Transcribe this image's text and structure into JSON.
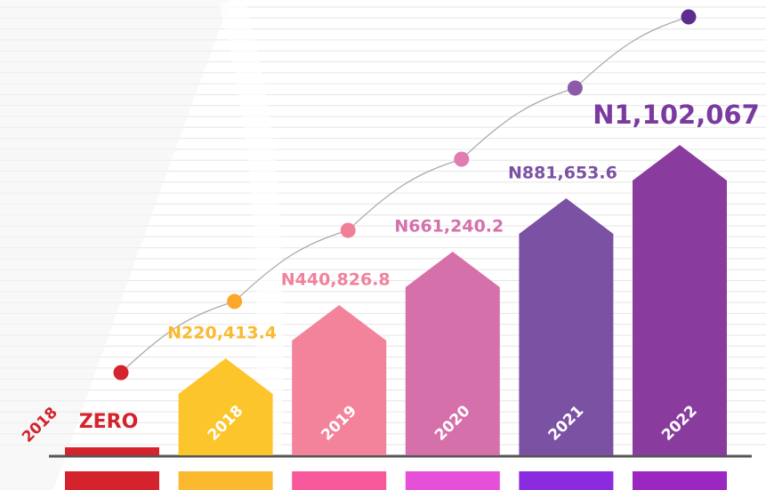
{
  "chart_data": {
    "type": "bar",
    "categories": [
      "2018",
      "2018",
      "2019",
      "2020",
      "2021",
      "2022"
    ],
    "values": [
      0,
      220413.4,
      440826.8,
      661240.2,
      881653.6,
      1102067
    ],
    "value_labels": [
      "ZERO",
      "N220,413.4",
      "N440,826.8",
      "N661,240.2",
      "N881,653.6",
      "N1,102,067"
    ],
    "colors": [
      "#d4232c",
      "#fdc52c",
      "#f3839b",
      "#d670ab",
      "#7b52a3",
      "#8a3c9e"
    ],
    "strip_colors": [
      "#d4232c",
      "#fbb92f",
      "#f8599a",
      "#e64fd7",
      "#8b2be0",
      "#9a27c0"
    ],
    "label_colors": [
      "#d4232c",
      "#fbb92f",
      "#f0829c",
      "#d670ab",
      "#7b52a3",
      "#7b3aa0"
    ],
    "dot_colors": [
      "#d4232c",
      "#fba72c",
      "#f27f98",
      "#e07cb0",
      "#8b5aa8",
      "#5a2d8f"
    ]
  }
}
